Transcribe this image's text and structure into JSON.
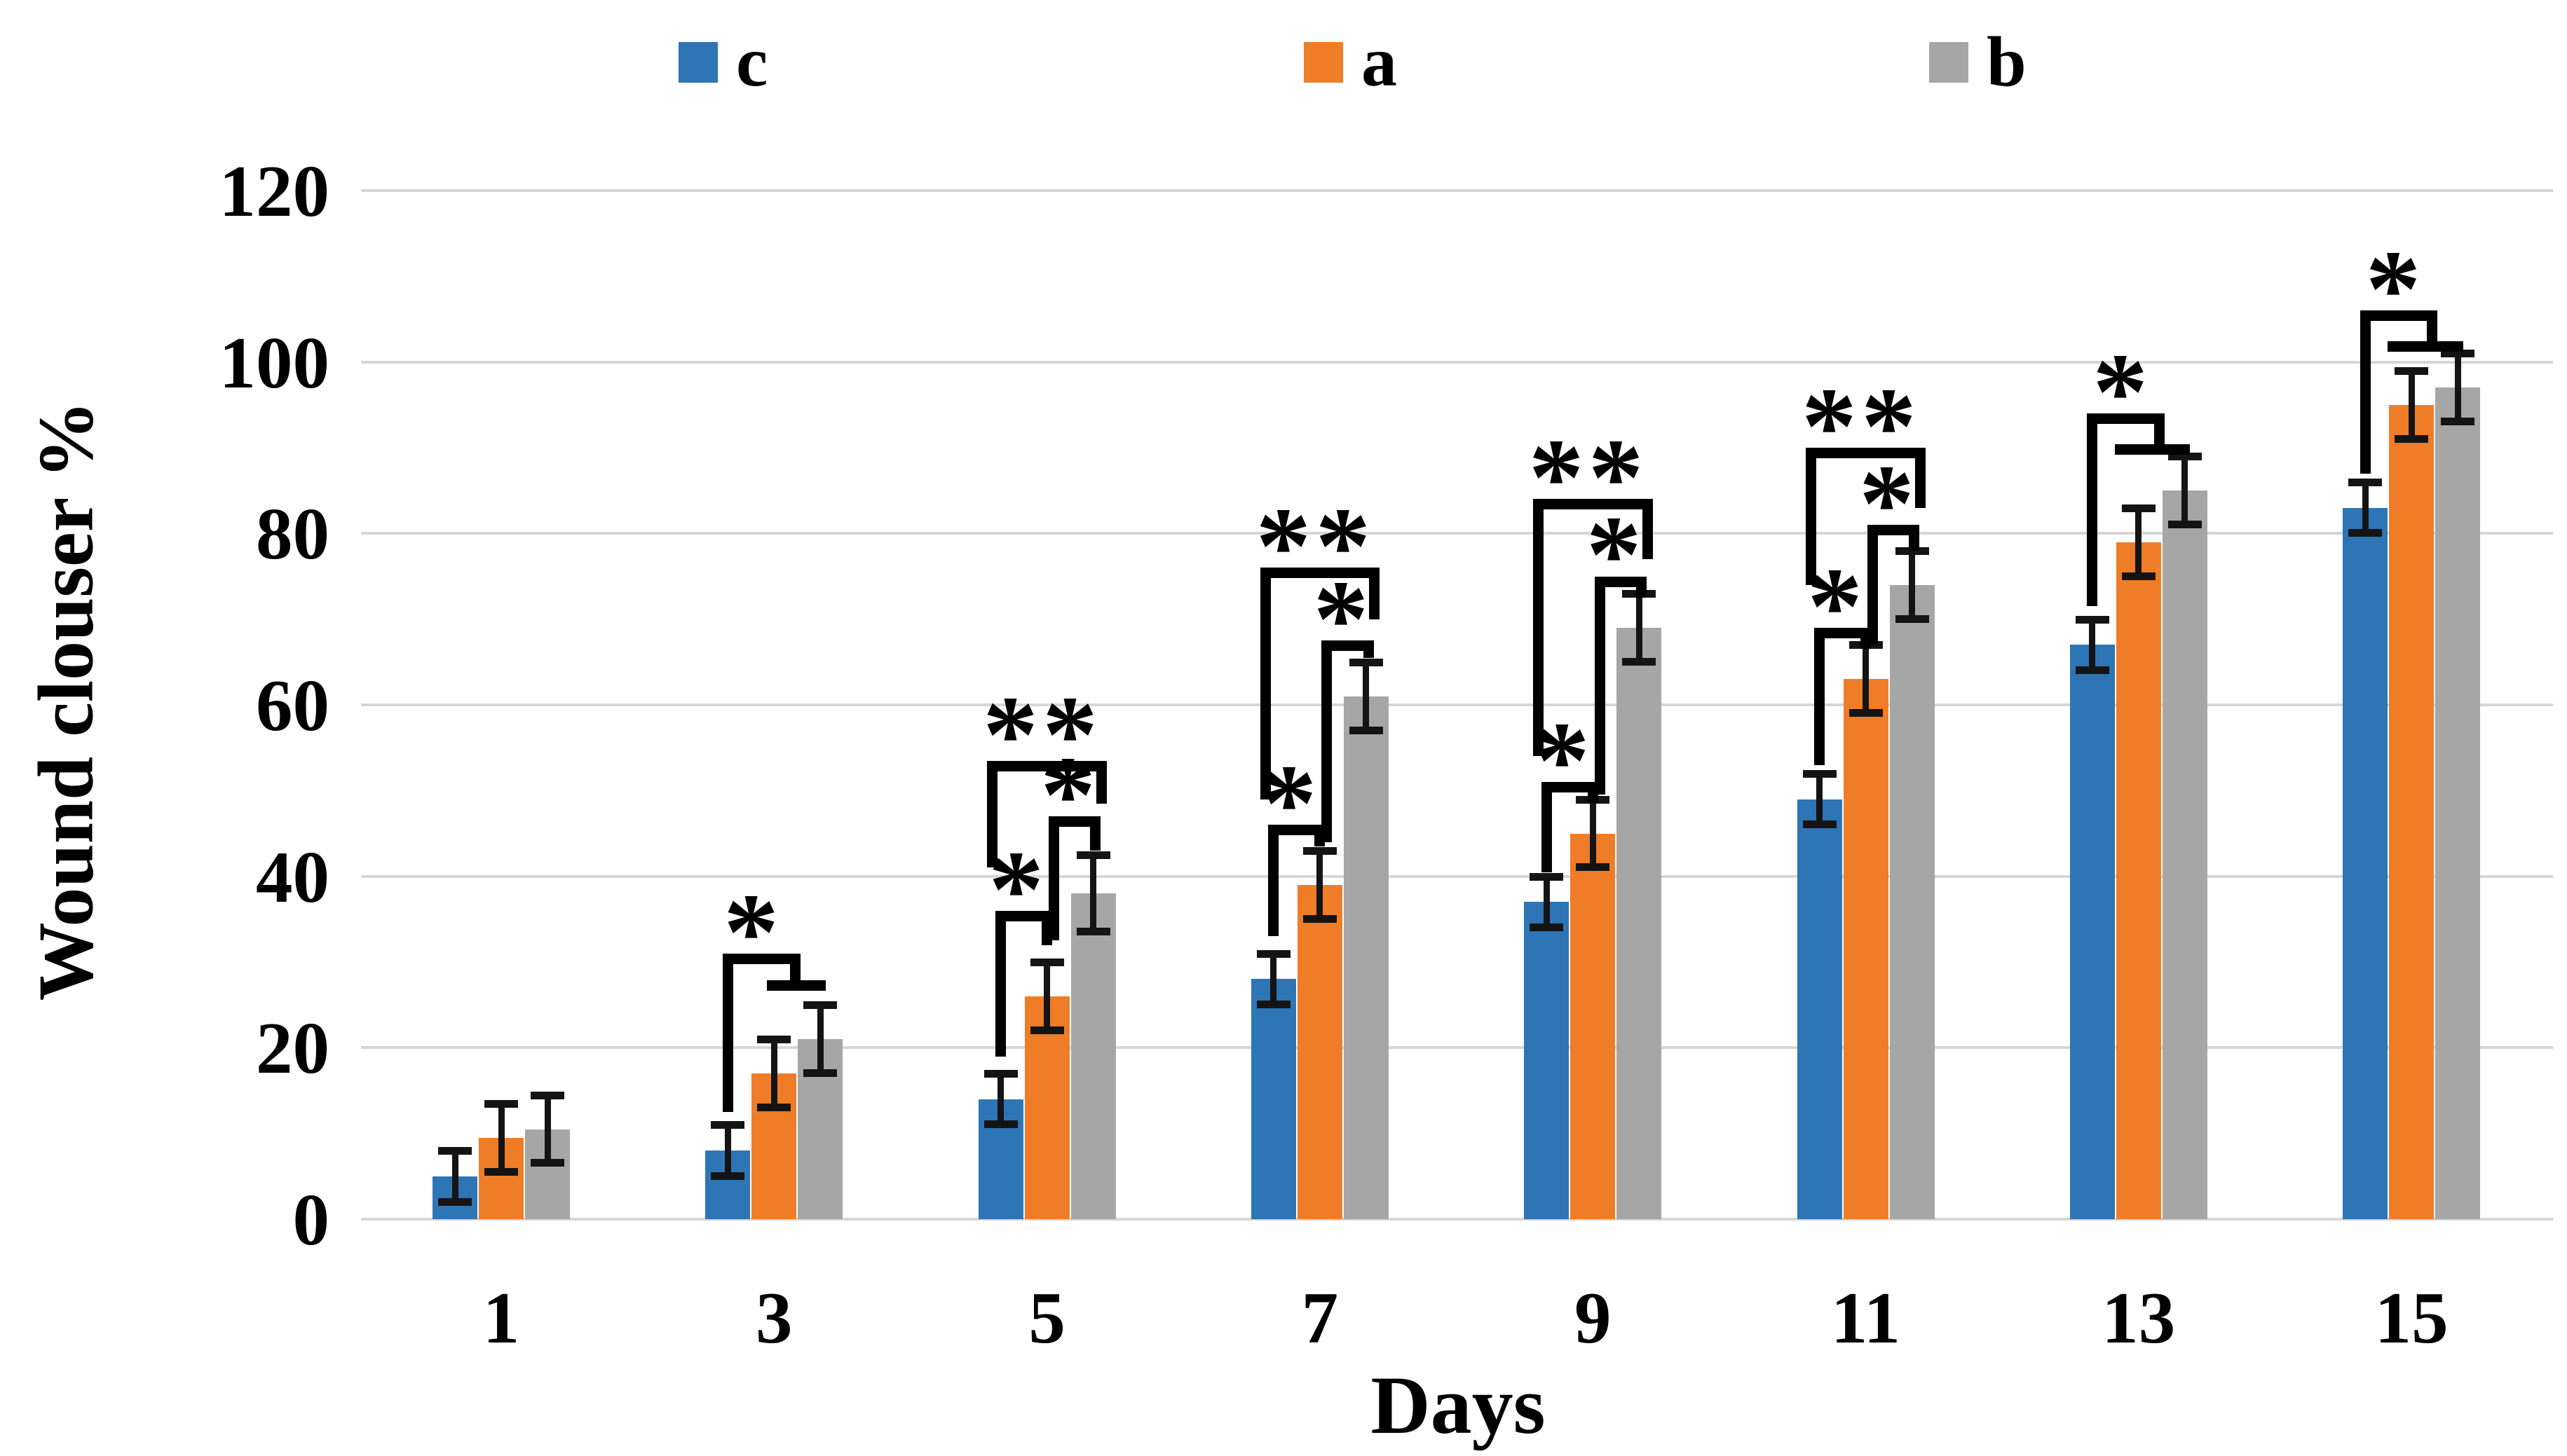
{
  "figure": {
    "background": "#ffffff"
  },
  "legend": {
    "items": [
      {
        "label": "c",
        "color": "#2E75B6"
      },
      {
        "label": "a",
        "color": "#EF7D28"
      },
      {
        "label": "b",
        "color": "#A6A6A6"
      }
    ]
  },
  "chart_data": {
    "type": "bar",
    "title": "",
    "xlabel": "Days",
    "ylabel": "Wound clouser %",
    "categories": [
      "1",
      "3",
      "5",
      "7",
      "9",
      "11",
      "13",
      "15"
    ],
    "ylim": [
      0,
      120
    ],
    "yticks": [
      0,
      20,
      40,
      60,
      80,
      100,
      120
    ],
    "grid": true,
    "legend_position": "top",
    "error_bar_color": "#141414",
    "significance_color": "#000000",
    "series": [
      {
        "name": "c",
        "color": "#2E75B6",
        "values": [
          5,
          8,
          14,
          28,
          37,
          49,
          67,
          83
        ],
        "errors": [
          3,
          3,
          3,
          3,
          3,
          3,
          3,
          3
        ]
      },
      {
        "name": "a",
        "color": "#EF7D28",
        "values": [
          9.5,
          17,
          26,
          39,
          45,
          63,
          79,
          95
        ],
        "errors": [
          4,
          4,
          4,
          4,
          4,
          4,
          4,
          4
        ]
      },
      {
        "name": "b",
        "color": "#A6A6A6",
        "values": [
          10.5,
          21,
          38,
          61,
          69,
          74,
          85,
          97
        ],
        "errors": [
          4,
          4,
          4.5,
          4,
          4,
          4,
          4,
          4
        ]
      }
    ],
    "significance": [
      {
        "category": "3",
        "items": [
          {
            "type": "bracket",
            "x1": -1,
            "x2": 0.45,
            "top": 31,
            "down1": 12.5,
            "down2": 27.7,
            "stars": "*",
            "star_x": -0.45,
            "star_y": 35.5
          },
          {
            "type": "hbar",
            "x1": -0.05,
            "x2": 1.0,
            "y": 27.9
          }
        ]
      },
      {
        "category": "5",
        "items": [
          {
            "type": "bracket",
            "x1": -1,
            "x2": 0,
            "top": 36,
            "down1": 19,
            "down2": 32,
            "stars": "*",
            "star_x": -0.62,
            "star_y": 40.5
          },
          {
            "type": "bracket",
            "x1": 0.15,
            "x2": 1.05,
            "top": 47,
            "down1": 32.5,
            "down2": 43,
            "stars": "*",
            "star_x": 0.5,
            "star_y": 51.5
          },
          {
            "type": "bracket",
            "x1": -1.18,
            "x2": 1.18,
            "top": 53.5,
            "down1": 41,
            "down2": 48.5,
            "stars": "**",
            "star_x": -0.1,
            "star_y": 58.5
          }
        ]
      },
      {
        "category": "7",
        "items": [
          {
            "type": "bracket",
            "x1": -1,
            "x2": 0,
            "top": 46,
            "down1": 33,
            "down2": 43.5,
            "stars": "*",
            "star_x": -0.62,
            "star_y": 50.5
          },
          {
            "type": "bracket",
            "x1": 0.15,
            "x2": 1.05,
            "top": 67.5,
            "down1": 44,
            "down2": 65.5,
            "stars": "*",
            "star_x": 0.5,
            "star_y": 72
          },
          {
            "type": "bracket",
            "x1": -1.18,
            "x2": 1.18,
            "top": 76,
            "down1": 49,
            "down2": 70,
            "stars": "**",
            "star_x": -0.1,
            "star_y": 80.5
          }
        ]
      },
      {
        "category": "9",
        "items": [
          {
            "type": "bracket",
            "x1": -1,
            "x2": 0,
            "top": 51,
            "down1": 40.5,
            "down2": 48.5,
            "stars": "*",
            "star_x": -0.62,
            "star_y": 55.5
          },
          {
            "type": "bracket",
            "x1": 0.15,
            "x2": 1.05,
            "top": 75,
            "down1": 49.5,
            "down2": 72.5,
            "stars": "*",
            "star_x": 0.5,
            "star_y": 79.5
          },
          {
            "type": "bracket",
            "x1": -1.18,
            "x2": 1.18,
            "top": 84,
            "down1": 54,
            "down2": 77,
            "stars": "**",
            "star_x": -0.1,
            "star_y": 88.5
          }
        ]
      },
      {
        "category": "11",
        "items": [
          {
            "type": "bracket",
            "x1": -1,
            "x2": 0,
            "top": 69,
            "down1": 53,
            "down2": 66.5,
            "stars": "*",
            "star_x": -0.62,
            "star_y": 73.5
          },
          {
            "type": "bracket",
            "x1": 0.15,
            "x2": 1.05,
            "top": 81,
            "down1": 67,
            "down2": 78,
            "stars": "*",
            "star_x": 0.5,
            "star_y": 85.5
          },
          {
            "type": "bracket",
            "x1": -1.18,
            "x2": 1.18,
            "top": 90,
            "down1": 74,
            "down2": 83,
            "stars": "**",
            "star_x": -0.1,
            "star_y": 94.5
          }
        ]
      },
      {
        "category": "13",
        "items": [
          {
            "type": "bracket",
            "x1": -1,
            "x2": 0.45,
            "top": 94,
            "down1": 71.5,
            "down2": 90.2,
            "stars": "*",
            "star_x": -0.35,
            "star_y": 98.5
          },
          {
            "type": "hbar",
            "x1": -0.4,
            "x2": 1.0,
            "y": 90.4
          }
        ]
      },
      {
        "category": "15",
        "items": [
          {
            "type": "bracket",
            "x1": -1,
            "x2": 0.45,
            "top": 106,
            "down1": 87,
            "down2": 102.2,
            "stars": "*",
            "star_x": -0.35,
            "star_y": 110.5
          },
          {
            "type": "hbar",
            "x1": -0.4,
            "x2": 1.0,
            "y": 102.4
          }
        ]
      }
    ]
  }
}
